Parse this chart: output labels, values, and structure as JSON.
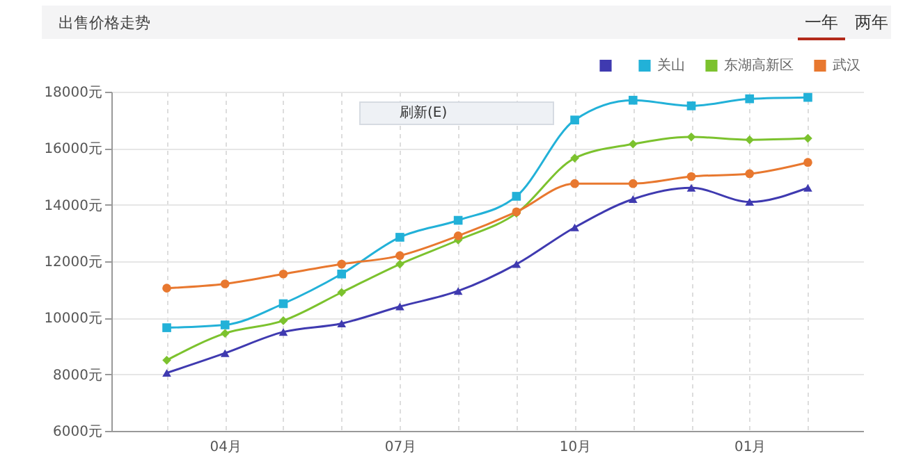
{
  "chart_data": {
    "type": "line",
    "title": "出售价格走势",
    "categories": [
      null,
      "04月",
      null,
      null,
      "07月",
      null,
      null,
      "10月",
      null,
      null,
      "01月",
      null
    ],
    "series": [
      {
        "color": "#3f3ab0",
        "marker": "triangle",
        "values": [
          8050,
          8750,
          9500,
          9800,
          10400,
          10950,
          11900,
          13200,
          14200,
          14600,
          14100,
          14600
        ]
      },
      {
        "name": "关山",
        "color": "#22b1d8",
        "marker": "square",
        "values": [
          9650,
          9750,
          10500,
          11550,
          12850,
          13450,
          14300,
          17000,
          17700,
          17500,
          17750,
          17800
        ]
      },
      {
        "name": "东湖高新区",
        "color": "#7cc22e",
        "marker": "diamond",
        "values": [
          8500,
          9450,
          9900,
          10900,
          11900,
          12750,
          13700,
          15650,
          16150,
          16400,
          16300,
          16350
        ]
      },
      {
        "name": "武汉",
        "color": "#e8782f",
        "marker": "circle",
        "values": [
          11050,
          11200,
          11550,
          11900,
          12200,
          12900,
          13750,
          14750,
          14750,
          15000,
          15100,
          15500
        ]
      }
    ],
    "ylim": [
      6000,
      18000
    ],
    "yticks": [
      {
        "value": 6000,
        "label": "6000元"
      },
      {
        "value": 8000,
        "label": "8000元"
      },
      {
        "value": 10000,
        "label": "10000元"
      },
      {
        "value": 12000,
        "label": "12000元"
      },
      {
        "value": 14000,
        "label": "14000元"
      },
      {
        "value": 16000,
        "label": "16000元"
      },
      {
        "value": 18000,
        "label": "18000元"
      }
    ],
    "grid": true,
    "legend": "top right",
    "line_style": "solid",
    "annotations": [
      "一年",
      "两年",
      "刷新(E)"
    ]
  }
}
